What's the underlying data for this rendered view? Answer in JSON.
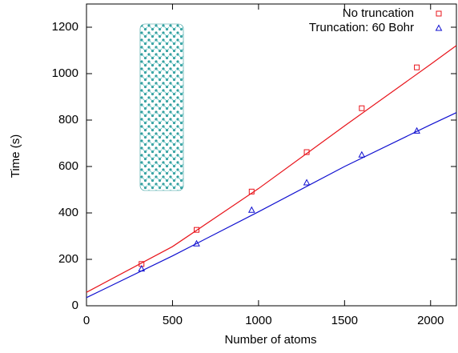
{
  "chart_data": {
    "type": "scatter",
    "x_label": "Number of atoms",
    "y_label": "Time (s)",
    "xlim": [
      0,
      2150
    ],
    "ylim": [
      0,
      1300
    ],
    "xticks": [
      0,
      500,
      1000,
      1500,
      2000
    ],
    "yticks": [
      0,
      200,
      400,
      600,
      800,
      1000,
      1200
    ],
    "legend": "top-right",
    "series": [
      {
        "name": "No truncation",
        "color": "#e8141b",
        "marker": "square",
        "x": [
          320,
          640,
          960,
          1280,
          1600,
          1920
        ],
        "values": [
          180,
          327,
          492,
          662,
          851,
          1027
        ]
      },
      {
        "name": "Truncation: 60 Bohr",
        "color": "#1010d0",
        "marker": "triangle",
        "x": [
          320,
          640,
          960,
          1280,
          1600,
          1920
        ],
        "values": [
          160,
          268,
          413,
          531,
          651,
          754
        ]
      }
    ],
    "fit_lines": [
      {
        "color": "#e8141b",
        "x": [
          0,
          500,
          1000,
          1500,
          2000,
          2150
        ],
        "values": [
          58,
          255,
          505,
          775,
          1040,
          1121
        ]
      },
      {
        "color": "#1010d0",
        "x": [
          0,
          500,
          1000,
          1500,
          2000,
          2150
        ],
        "values": [
          35,
          215,
          405,
          600,
          780,
          832
        ]
      }
    ]
  }
}
